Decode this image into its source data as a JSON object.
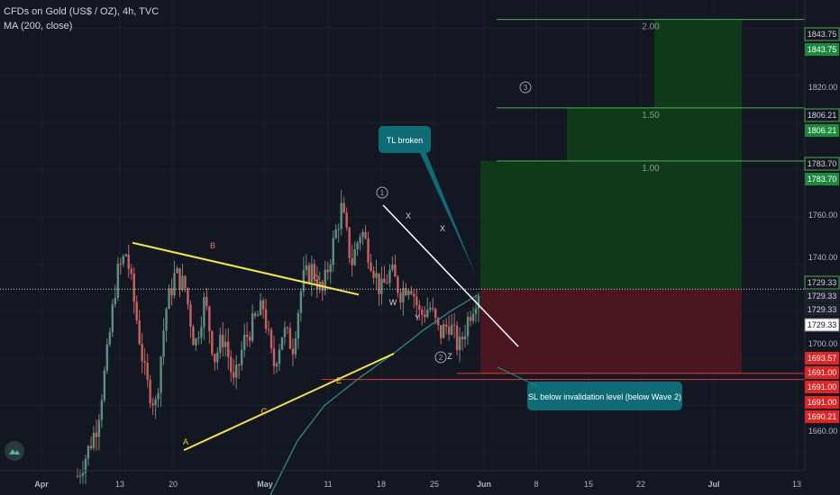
{
  "header": {
    "symbol_line": "CFDs on Gold (US$ / OZ), 4h, TVC",
    "indicator_line": "MA (200, close)"
  },
  "chart_data": {
    "type": "candlestick",
    "title": "CFDs on Gold (US$ / OZ), 4h, TVC",
    "ylim": [
      1642,
      1852
    ],
    "x_ticks": [
      "Apr",
      "13",
      "20",
      "May",
      "11",
      "18",
      "25",
      "Jun",
      "8",
      "15",
      "22",
      "Jul",
      "13"
    ],
    "y_ticks": [
      "1820.00",
      "1760.00",
      "1740.00",
      "1700.00",
      "1680.00",
      "1660.00"
    ],
    "price_labels": [
      {
        "text": "1843.75",
        "style": "outline"
      },
      {
        "text": "1843.75",
        "style": "green"
      },
      {
        "text": "1806.21",
        "style": "outline"
      },
      {
        "text": "1806.21",
        "style": "green"
      },
      {
        "text": "1783.70",
        "style": "outline"
      },
      {
        "text": "1783.70",
        "style": "green"
      },
      {
        "text": "1729.33",
        "style": "outline"
      },
      {
        "text": "1729.33",
        "style": "dark"
      },
      {
        "text": "1729.33",
        "style": "dark"
      },
      {
        "text": "1729.33",
        "style": "white"
      },
      {
        "text": "1693.57",
        "style": "red"
      },
      {
        "text": "1691.00",
        "style": "red"
      },
      {
        "text": "1691.00",
        "style": "red"
      },
      {
        "text": "1691.00",
        "style": "red"
      },
      {
        "text": "1690.21",
        "style": "red"
      }
    ],
    "fib_levels": [
      {
        "label": "2.00",
        "value": 1843.75
      },
      {
        "label": "1.50",
        "value": 1806.21
      },
      {
        "label": "1.00",
        "value": 1783.7
      }
    ],
    "stop_loss": [
      1693.57,
      1691.0
    ],
    "entry": 1729.33,
    "wave_labels": [
      "B",
      "D",
      "A",
      "C",
      "E",
      "X",
      "W",
      "Y",
      "X",
      "Z",
      "1",
      "2",
      "3"
    ],
    "callouts": [
      {
        "text": "TL broken"
      },
      {
        "text": "SL below invalidation level (below Wave 2)"
      }
    ],
    "close_points": [
      [
        0,
        1650
      ],
      [
        1,
        1660
      ],
      [
        2,
        1672
      ],
      [
        3,
        1700
      ],
      [
        4,
        1735
      ],
      [
        5,
        1745
      ],
      [
        6,
        1718
      ],
      [
        7,
        1690
      ],
      [
        8,
        1680
      ],
      [
        9,
        1720
      ],
      [
        10,
        1736
      ],
      [
        11,
        1730
      ],
      [
        12,
        1705
      ],
      [
        13,
        1725
      ],
      [
        14,
        1700
      ],
      [
        15,
        1710
      ],
      [
        16,
        1688
      ],
      [
        17,
        1707
      ],
      [
        18,
        1715
      ],
      [
        19,
        1722
      ],
      [
        20,
        1696
      ],
      [
        21,
        1712
      ],
      [
        22,
        1705
      ],
      [
        23,
        1733
      ],
      [
        24,
        1738
      ],
      [
        25,
        1727
      ],
      [
        26,
        1746
      ],
      [
        27,
        1764
      ],
      [
        28,
        1740
      ],
      [
        29,
        1755
      ],
      [
        30,
        1742
      ],
      [
        31,
        1728
      ],
      [
        32,
        1737
      ],
      [
        33,
        1728
      ],
      [
        34,
        1733
      ],
      [
        35,
        1718
      ],
      [
        36,
        1722
      ],
      [
        37,
        1710
      ],
      [
        38,
        1715
      ],
      [
        39,
        1704
      ],
      [
        40,
        1718
      ],
      [
        41,
        1729
      ]
    ]
  }
}
